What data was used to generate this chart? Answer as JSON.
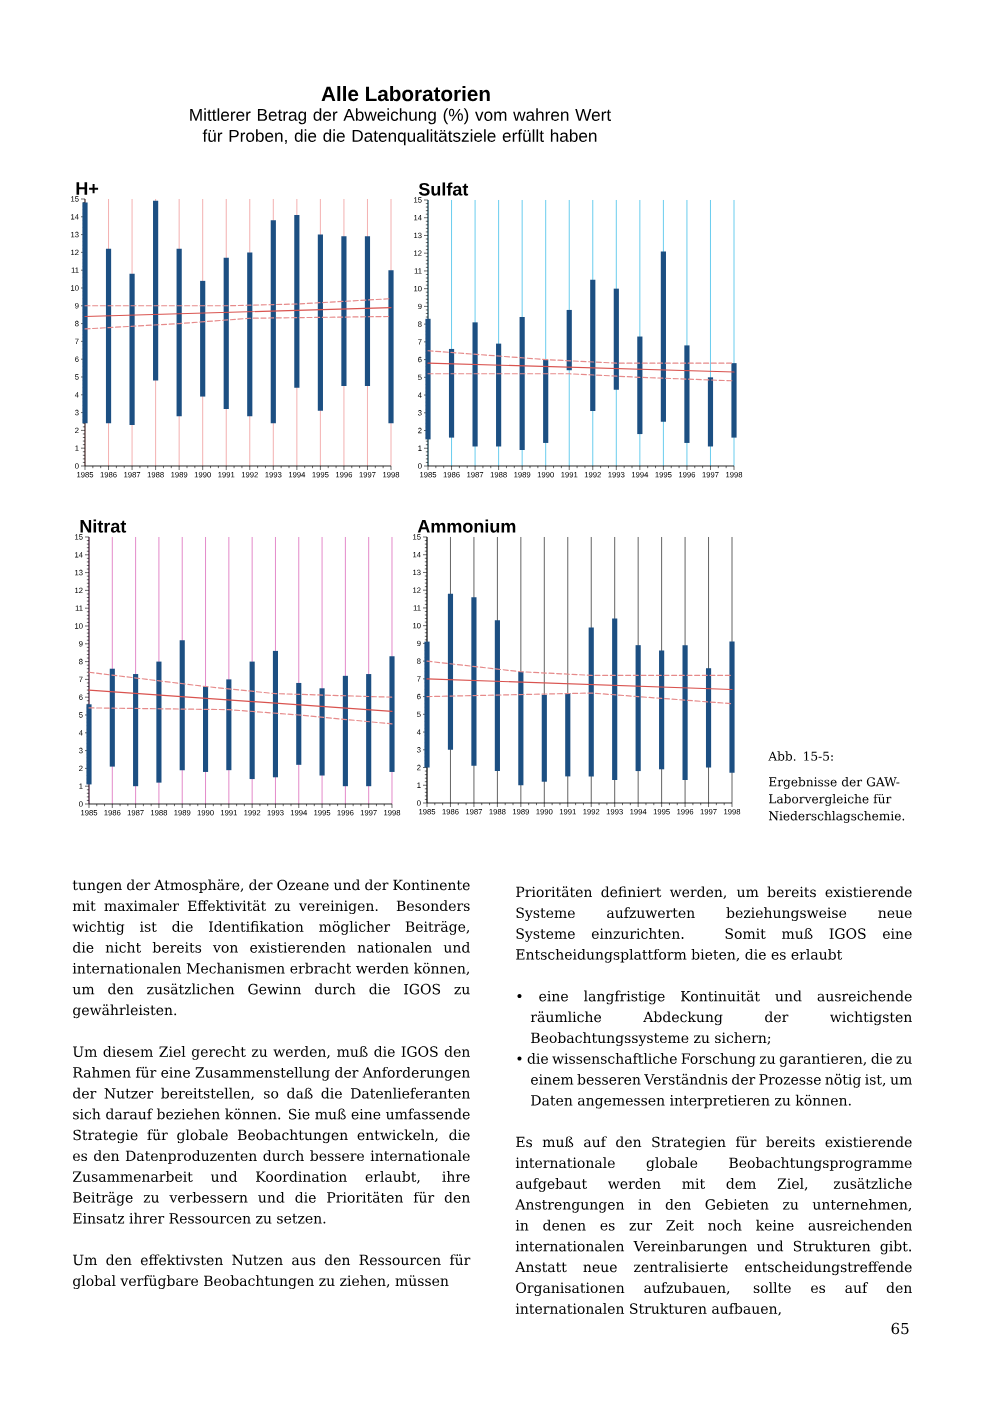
{
  "chart_data": [
    {
      "type": "other",
      "title": "Alle Laboratorien",
      "subtitle": "Mittlerer Betrag der Abweichung (%) vom wahren Wert für Proben, die die Datenqualitätsziele erfüllt haben"
    },
    {
      "type": "bar",
      "title": "H+",
      "x": [
        1985,
        1986,
        1987,
        1988,
        1989,
        1990,
        1991,
        1992,
        1993,
        1994,
        1995,
        1996,
        1997,
        1998
      ],
      "xlim": [
        1985,
        1998
      ],
      "xticks": [
        1985,
        1986,
        1987,
        1988,
        1989,
        1990,
        1991,
        1992,
        1993,
        1994,
        1995,
        1996,
        1997,
        1998
      ],
      "ylim": [
        0,
        15
      ],
      "yticks": [
        0,
        1,
        2,
        3,
        4,
        5,
        6,
        7,
        8,
        9,
        10,
        11,
        12,
        13,
        14,
        15
      ],
      "grid": "x",
      "series": [
        {
          "type": "bar",
          "color": "#1c4f82",
          "base": [
            2.4,
            2.4,
            2.3,
            4.8,
            2.8,
            3.9,
            3.2,
            2.8,
            2.4,
            4.4,
            3.1,
            4.5,
            4.5,
            2.4
          ],
          "values": [
            12.4,
            9.8,
            8.5,
            10.1,
            9.4,
            6.5,
            8.5,
            9.2,
            11.4,
            9.7,
            9.9,
            8.4,
            8.4,
            8.6
          ]
        },
        {
          "type": "line",
          "color": "#d9534f",
          "line_style": "solid",
          "x": [
            1985,
            1998
          ],
          "values": [
            8.4,
            8.9
          ]
        },
        {
          "type": "line",
          "color": "#e68a8a",
          "line_style": "dashed",
          "x": [
            1985,
            1991,
            1994,
            1998
          ],
          "values": [
            9.0,
            9.0,
            9.1,
            9.4
          ]
        },
        {
          "type": "line",
          "color": "#e68a8a",
          "line_style": "dashed",
          "x": [
            1985,
            1989,
            1992,
            1998
          ],
          "values": [
            7.7,
            8.0,
            8.3,
            8.4
          ]
        }
      ]
    },
    {
      "type": "bar",
      "title": "Sulfat",
      "x": [
        1985,
        1986,
        1987,
        1988,
        1989,
        1990,
        1991,
        1992,
        1993,
        1994,
        1995,
        1996,
        1997,
        1998
      ],
      "xlim": [
        1985,
        1998
      ],
      "xticks": [
        1985,
        1986,
        1987,
        1988,
        1989,
        1990,
        1991,
        1992,
        1993,
        1994,
        1995,
        1996,
        1997,
        1998
      ],
      "ylim": [
        0,
        15
      ],
      "yticks": [
        0,
        1,
        2,
        3,
        4,
        5,
        6,
        7,
        8,
        9,
        10,
        11,
        12,
        13,
        14,
        15
      ],
      "grid": "x",
      "series": [
        {
          "type": "bar",
          "color": "#1c4f82",
          "base": [
            1.5,
            1.6,
            1.1,
            1.1,
            0.9,
            1.3,
            5.4,
            3.1,
            4.3,
            1.8,
            2.5,
            1.3,
            1.1,
            1.6
          ],
          "values": [
            6.8,
            5.0,
            7.0,
            5.8,
            7.5,
            4.7,
            3.4,
            7.4,
            5.7,
            5.5,
            9.6,
            5.5,
            3.9,
            4.2
          ]
        },
        {
          "type": "line",
          "color": "#d9534f",
          "line_style": "solid",
          "x": [
            1985,
            1998
          ],
          "values": [
            5.8,
            5.3
          ]
        },
        {
          "type": "line",
          "color": "#e68a8a",
          "line_style": "dashed",
          "x": [
            1985,
            1990,
            1993,
            1998
          ],
          "values": [
            6.5,
            6.0,
            5.8,
            5.8
          ]
        },
        {
          "type": "line",
          "color": "#e68a8a",
          "line_style": "dashed",
          "x": [
            1985,
            1991,
            1994,
            1998
          ],
          "values": [
            5.2,
            5.2,
            5.0,
            4.8
          ]
        }
      ]
    },
    {
      "type": "bar",
      "title": "Nitrat",
      "x": [
        1985,
        1986,
        1987,
        1988,
        1989,
        1990,
        1991,
        1992,
        1993,
        1994,
        1995,
        1996,
        1997,
        1998
      ],
      "xlim": [
        1985,
        1998
      ],
      "xticks": [
        1985,
        1986,
        1987,
        1988,
        1989,
        1990,
        1991,
        1992,
        1993,
        1994,
        1995,
        1996,
        1997,
        1998
      ],
      "ylim": [
        0,
        15
      ],
      "yticks": [
        0,
        1,
        2,
        3,
        4,
        5,
        6,
        7,
        8,
        9,
        10,
        11,
        12,
        13,
        14,
        15
      ],
      "grid": "x",
      "series": [
        {
          "type": "bar",
          "color": "#1c4f82",
          "base": [
            1.1,
            2.1,
            1.0,
            1.2,
            1.9,
            1.8,
            1.9,
            1.4,
            1.5,
            2.2,
            1.6,
            1.0,
            1.0,
            1.8
          ],
          "values": [
            4.5,
            5.5,
            6.3,
            6.8,
            7.3,
            4.8,
            5.1,
            6.6,
            7.1,
            4.6,
            4.9,
            6.2,
            6.3,
            6.5
          ]
        },
        {
          "type": "line",
          "color": "#d9534f",
          "line_style": "solid",
          "x": [
            1985,
            1998
          ],
          "values": [
            6.4,
            5.2
          ]
        },
        {
          "type": "line",
          "color": "#e68a8a",
          "line_style": "dashed",
          "x": [
            1985,
            1990,
            1993,
            1998
          ],
          "values": [
            7.4,
            6.6,
            6.2,
            6.0
          ]
        },
        {
          "type": "line",
          "color": "#e68a8a",
          "line_style": "dashed",
          "x": [
            1985,
            1991,
            1994,
            1998
          ],
          "values": [
            5.4,
            5.3,
            5.0,
            4.5
          ]
        }
      ]
    },
    {
      "type": "bar",
      "title": "Ammonium",
      "x": [
        1985,
        1986,
        1987,
        1988,
        1989,
        1990,
        1991,
        1992,
        1993,
        1994,
        1995,
        1996,
        1997,
        1998
      ],
      "xlim": [
        1985,
        1998
      ],
      "xticks": [
        1985,
        1986,
        1987,
        1988,
        1989,
        1990,
        1991,
        1992,
        1993,
        1994,
        1995,
        1996,
        1997,
        1998
      ],
      "ylim": [
        0,
        15
      ],
      "yticks": [
        0,
        1,
        2,
        3,
        4,
        5,
        6,
        7,
        8,
        9,
        10,
        11,
        12,
        13,
        14,
        15
      ],
      "grid": "x",
      "series": [
        {
          "type": "bar",
          "color": "#1c4f82",
          "base": [
            2.0,
            3.0,
            2.1,
            1.8,
            1.0,
            1.2,
            1.5,
            1.5,
            1.3,
            1.8,
            1.9,
            1.3,
            2.0,
            1.7
          ],
          "values": [
            7.1,
            8.8,
            9.5,
            8.5,
            6.4,
            4.9,
            4.7,
            8.4,
            9.1,
            7.1,
            6.7,
            7.6,
            5.6,
            7.4
          ]
        },
        {
          "type": "line",
          "color": "#d9534f",
          "line_style": "solid",
          "x": [
            1985,
            1998
          ],
          "values": [
            7.0,
            6.4
          ]
        },
        {
          "type": "line",
          "color": "#e68a8a",
          "line_style": "dashed",
          "x": [
            1985,
            1989,
            1992,
            1998
          ],
          "values": [
            8.0,
            7.4,
            7.2,
            7.2
          ]
        },
        {
          "type": "line",
          "color": "#e68a8a",
          "line_style": "dashed",
          "x": [
            1985,
            1992,
            1994,
            1998
          ],
          "values": [
            6.0,
            6.2,
            6.0,
            5.6
          ]
        }
      ]
    },
    {
      "type": "other",
      "annotations": [
        "Abb. 15-5:",
        "Ergebnisse der GAW-Laborvergleiche für Niederschlagschemie.",
        "tungen der Atmosphäre, der Ozeane und der Kontinente mit maximaler Effektivität zu vereinigen. Besonders wichtig ist die Identifikation möglicher Beiträge, die nicht bereits von existierenden nationalen und internationalen Mechanismen erbracht werden können, um den zusätzlichen Gewinn durch die IGOS zu gewährleisten.",
        "Um diesem Ziel gerecht zu werden, muß die IGOS den Rahmen für eine Zusammenstellung der Anforderungen der Nutzer bereitstellen, so daß die Datenlieferanten sich darauf beziehen können. Sie muß eine umfassende Strategie für globale Beobachtungen entwickeln, die es den Datenproduzenten durch bessere internationale Zusammenarbeit und Koordination erlaubt, ihre Beiträge zu verbessern und die Prioritäten für den Einsatz ihrer Ressourcen zu setzen.",
        "Um den effektivsten Nutzen aus den Ressourcen für global verfügbare Beobachtungen zu ziehen, müssen",
        "Prioritäten definiert werden, um bereits existierende Systeme aufzuwerten beziehungsweise neue Systeme einzurichten. Somit muß IGOS eine Entscheidungsplattform bieten, die es erlaubt",
        "• eine langfristige Kontinuität und ausreichende räumliche Abdeckung der wichtigsten Beobachtungssysteme zu sichern;",
        "• die wissenschaftliche Forschung zu garantieren, die zu einem besseren Verständnis der Prozesse nötig ist, um Daten angemessen interpretieren zu können.",
        "Es muß auf den Strategien für bereits existierende internationale globale Beobachtungsprogramme aufgebaut werden mit dem Ziel, zusätzliche Anstrengungen in den Gebieten zu unternehmen, in denen es zur Zeit noch keine ausreichenden internationalen Vereinbarungen und Strukturen gibt. Anstatt neue zentralisierte entscheidungstreffende Organisationen aufzubauen, sollte es auf den internationalen Strukturen aufbauen,",
        "65"
      ]
    }
  ]
}
